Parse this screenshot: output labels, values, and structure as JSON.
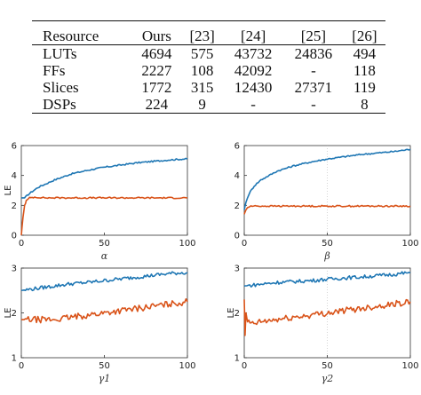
{
  "table": {
    "headers": [
      "Resource",
      "Ours",
      "[23]",
      "[24]",
      "[25]",
      "[26]"
    ],
    "rows": [
      [
        "LUTs",
        "4694",
        "575",
        "43732",
        "24836",
        "494"
      ],
      [
        "FFs",
        "2227",
        "108",
        "42092",
        "-",
        "118"
      ],
      [
        "Slices",
        "1772",
        "315",
        "12430",
        "27371",
        "119"
      ],
      [
        "DSPs",
        "224",
        "9",
        "-",
        "-",
        "8"
      ]
    ]
  },
  "chart_data": [
    {
      "type": "line",
      "xlabel": "α",
      "ylabel": "LE",
      "xlim": [
        0,
        100
      ],
      "ylim": [
        0,
        6
      ],
      "xticks": [
        "0",
        "50",
        "100"
      ],
      "yticks": [
        "0",
        "2",
        "4",
        "6"
      ],
      "grid": false,
      "series": [
        {
          "color": "#1f77b4",
          "x": [
            0,
            2,
            5,
            10,
            20,
            30,
            40,
            50,
            60,
            70,
            80,
            90,
            98,
            100
          ],
          "y": [
            2.5,
            2.5,
            2.8,
            3.2,
            3.7,
            4.1,
            4.35,
            4.55,
            4.7,
            4.85,
            4.95,
            5.05,
            5.1,
            5.1
          ]
        },
        {
          "color": "#d95319",
          "x": [
            0,
            1,
            2,
            3,
            5,
            8,
            15,
            30,
            50,
            70,
            90,
            100
          ],
          "y": [
            0,
            1.2,
            2.0,
            2.3,
            2.5,
            2.55,
            2.5,
            2.5,
            2.5,
            2.5,
            2.5,
            2.5
          ]
        }
      ]
    },
    {
      "type": "line",
      "xlabel": "β",
      "ylabel": "",
      "xlim": [
        0,
        100
      ],
      "ylim": [
        0,
        6
      ],
      "xticks": [
        "0",
        "50",
        "100"
      ],
      "yticks": [
        "0",
        "2",
        "4",
        "6"
      ],
      "grid": true,
      "series": [
        {
          "color": "#1f77b4",
          "x": [
            0,
            1,
            3,
            6,
            10,
            15,
            20,
            30,
            40,
            50,
            60,
            70,
            80,
            90,
            100
          ],
          "y": [
            1.7,
            2.2,
            2.8,
            3.3,
            3.7,
            4.0,
            4.3,
            4.65,
            4.9,
            5.1,
            5.25,
            5.4,
            5.5,
            5.6,
            5.75
          ]
        },
        {
          "color": "#d95319",
          "x": [
            0,
            1,
            2,
            4,
            10,
            30,
            50,
            70,
            100
          ],
          "y": [
            1.4,
            1.7,
            1.85,
            1.95,
            1.95,
            1.95,
            1.95,
            1.95,
            1.95
          ]
        }
      ]
    },
    {
      "type": "line",
      "xlabel": "γ1",
      "ylabel": "LE",
      "xlim": [
        0,
        100
      ],
      "ylim": [
        1,
        3
      ],
      "xticks": [
        "0",
        "50",
        "100"
      ],
      "yticks": [
        "1",
        "2",
        "3"
      ],
      "grid": false,
      "series": [
        {
          "color": "#1f77b4",
          "x": [
            0,
            10,
            20,
            30,
            40,
            50,
            60,
            70,
            80,
            90,
            100
          ],
          "y": [
            2.5,
            2.55,
            2.6,
            2.65,
            2.68,
            2.72,
            2.76,
            2.8,
            2.84,
            2.88,
            2.9
          ]
        },
        {
          "color": "#d95319",
          "x": [
            0,
            10,
            20,
            30,
            40,
            50,
            60,
            70,
            80,
            90,
            100
          ],
          "y": [
            1.85,
            1.85,
            1.85,
            1.9,
            1.95,
            2.0,
            2.05,
            2.1,
            2.15,
            2.2,
            2.25
          ]
        }
      ]
    },
    {
      "type": "line",
      "xlabel": "γ2",
      "ylabel": "LE",
      "xlim": [
        0,
        100
      ],
      "ylim": [
        1,
        3
      ],
      "xticks": [
        "0",
        "50",
        "100"
      ],
      "yticks": [
        "1",
        "2",
        "3"
      ],
      "grid": true,
      "series": [
        {
          "color": "#1f77b4",
          "x": [
            0,
            5,
            10,
            20,
            30,
            40,
            50,
            60,
            70,
            80,
            90,
            100
          ],
          "y": [
            2.6,
            2.62,
            2.64,
            2.68,
            2.7,
            2.72,
            2.75,
            2.78,
            2.8,
            2.83,
            2.86,
            2.9
          ]
        },
        {
          "color": "#d95319",
          "x": [
            0,
            0.5,
            1,
            2,
            5,
            10,
            20,
            30,
            40,
            50,
            60,
            70,
            80,
            90,
            100
          ],
          "y": [
            2.3,
            1.5,
            2.0,
            1.8,
            1.75,
            1.8,
            1.85,
            1.9,
            1.95,
            2.0,
            2.05,
            2.1,
            2.15,
            2.2,
            2.25
          ]
        }
      ]
    }
  ]
}
